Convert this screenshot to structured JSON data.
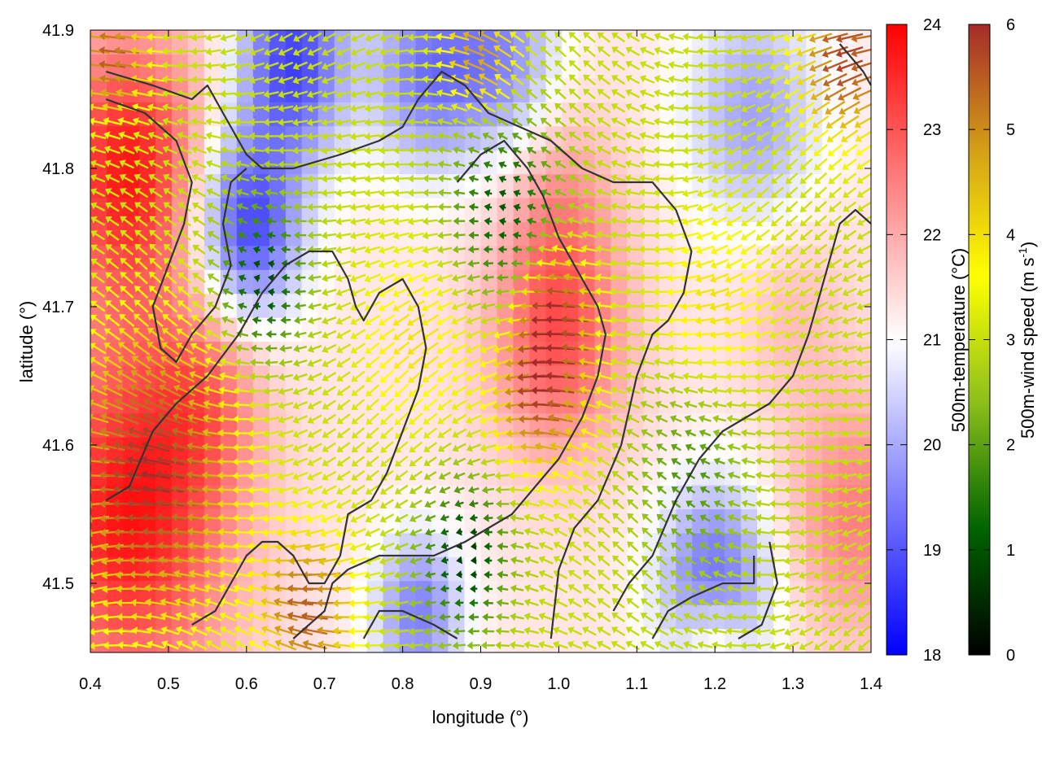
{
  "chart_data": {
    "type": "heatmap",
    "xlabel": "longitude (°)",
    "ylabel": "latitude (°)",
    "xlim": [
      0.4,
      1.4
    ],
    "ylim": [
      41.45,
      41.9
    ],
    "xticks": [
      {
        "value": 0.4,
        "label": "0.4"
      },
      {
        "value": 0.5,
        "label": "0.5"
      },
      {
        "value": 0.6,
        "label": "0.6"
      },
      {
        "value": 0.7,
        "label": "0.7"
      },
      {
        "value": 0.8,
        "label": "0.8"
      },
      {
        "value": 0.9,
        "label": "0.9"
      },
      {
        "value": 1.0,
        "label": "1.0"
      },
      {
        "value": 1.1,
        "label": "1.1"
      },
      {
        "value": 1.2,
        "label": "1.2"
      },
      {
        "value": 1.3,
        "label": "1.3"
      },
      {
        "value": 1.4,
        "label": "1.4"
      }
    ],
    "yticks": [
      {
        "value": 41.5,
        "label": "41.5"
      },
      {
        "value": 41.6,
        "label": "41.6"
      },
      {
        "value": 41.7,
        "label": "41.7"
      },
      {
        "value": 41.8,
        "label": "41.8"
      },
      {
        "value": 41.9,
        "label": "41.9"
      }
    ],
    "colorbars": [
      {
        "name": "temperature",
        "label": "500m-temperature (°C)",
        "range": [
          18,
          24
        ],
        "ticks": [
          {
            "value": 18,
            "label": "18"
          },
          {
            "value": 19,
            "label": "19"
          },
          {
            "value": 20,
            "label": "20"
          },
          {
            "value": 21,
            "label": "21"
          },
          {
            "value": 22,
            "label": "22"
          },
          {
            "value": 23,
            "label": "23"
          },
          {
            "value": 24,
            "label": "24"
          }
        ],
        "colors": [
          "#0000ff",
          "#ffffff",
          "#ff0000"
        ]
      },
      {
        "name": "wind_speed",
        "label_main": "500m-wind speed (m s",
        "label_sup": "-1",
        "label_end": ")",
        "range": [
          0,
          6
        ],
        "ticks": [
          {
            "value": 0,
            "label": "0"
          },
          {
            "value": 1,
            "label": "1"
          },
          {
            "value": 2,
            "label": "2"
          },
          {
            "value": 3,
            "label": "3"
          },
          {
            "value": 4,
            "label": "4"
          },
          {
            "value": 5,
            "label": "5"
          },
          {
            "value": 6,
            "label": "6"
          }
        ],
        "colors": [
          "#000000",
          "#006400",
          "#8cbf1a",
          "#ffff00",
          "#d4a017",
          "#a52a2a"
        ]
      }
    ],
    "temperature_field": {
      "base": 21.3,
      "features": [
        {
          "lon": 0.45,
          "lat": 41.8,
          "amp": 2.4,
          "sigma": 0.07
        },
        {
          "lon": 0.45,
          "lat": 41.55,
          "amp": 2.5,
          "sigma": 0.09
        },
        {
          "lon": 0.6,
          "lat": 41.76,
          "amp": -2.6,
          "sigma": 0.05
        },
        {
          "lon": 0.66,
          "lat": 41.88,
          "amp": -2.5,
          "sigma": 0.05
        },
        {
          "lon": 0.83,
          "lat": 41.87,
          "amp": -1.8,
          "sigma": 0.05
        },
        {
          "lon": 0.93,
          "lat": 41.88,
          "amp": -1.6,
          "sigma": 0.05
        },
        {
          "lon": 1.0,
          "lat": 41.68,
          "amp": 1.7,
          "sigma": 0.06
        },
        {
          "lon": 1.0,
          "lat": 41.78,
          "amp": 0.8,
          "sigma": 0.05
        },
        {
          "lon": 0.82,
          "lat": 41.48,
          "amp": -1.8,
          "sigma": 0.04
        },
        {
          "lon": 0.55,
          "lat": 41.64,
          "amp": 1.0,
          "sigma": 0.05
        },
        {
          "lon": 1.2,
          "lat": 41.5,
          "amp": -2.2,
          "sigma": 0.05
        },
        {
          "lon": 1.25,
          "lat": 41.84,
          "amp": -1.4,
          "sigma": 0.06
        },
        {
          "lon": 1.38,
          "lat": 41.55,
          "amp": 1.2,
          "sigma": 0.06
        },
        {
          "lon": 1.3,
          "lat": 41.7,
          "amp": 0.5,
          "sigma": 0.05
        },
        {
          "lon": 1.2,
          "lat": 41.46,
          "amp": 1.2,
          "sigma": 0.03
        }
      ]
    },
    "wind_field": {
      "base_speed": 3.0,
      "speed_features": [
        {
          "lon": 0.48,
          "lat": 41.58,
          "amp": 3.0,
          "sigma": 0.07
        },
        {
          "lon": 0.98,
          "lat": 41.64,
          "amp": 2.8,
          "sigma": 0.04
        },
        {
          "lon": 1.0,
          "lat": 41.7,
          "amp": 2.6,
          "sigma": 0.03
        },
        {
          "lon": 0.43,
          "lat": 41.88,
          "amp": 2.5,
          "sigma": 0.03
        },
        {
          "lon": 1.37,
          "lat": 41.88,
          "amp": 2.8,
          "sigma": 0.04
        },
        {
          "lon": 0.9,
          "lat": 41.88,
          "amp": 2.0,
          "sigma": 0.03
        },
        {
          "lon": 0.68,
          "lat": 41.48,
          "amp": 2.5,
          "sigma": 0.04
        },
        {
          "lon": 0.62,
          "lat": 41.72,
          "amp": -2.2,
          "sigma": 0.04
        },
        {
          "lon": 0.88,
          "lat": 41.52,
          "amp": -2.3,
          "sigma": 0.04
        },
        {
          "lon": 0.93,
          "lat": 41.77,
          "amp": -2.0,
          "sigma": 0.05
        },
        {
          "lon": 1.17,
          "lat": 41.58,
          "amp": -1.2,
          "sigma": 0.05
        },
        {
          "lon": 0.82,
          "lat": 41.68,
          "amp": 1.0,
          "sigma": 0.05
        },
        {
          "lon": 1.2,
          "lat": 41.7,
          "amp": 1.0,
          "sigma": 0.05
        }
      ],
      "prevailing_direction_deg": 180
    },
    "coastline_paths": [
      [
        [
          0.42,
          41.87
        ],
        [
          0.48,
          41.86
        ],
        [
          0.53,
          41.85
        ],
        [
          0.55,
          41.86
        ],
        [
          0.57,
          41.84
        ],
        [
          0.6,
          41.81
        ],
        [
          0.62,
          41.8
        ],
        [
          0.66,
          41.8
        ],
        [
          0.72,
          41.81
        ],
        [
          0.77,
          41.82
        ],
        [
          0.8,
          41.83
        ],
        [
          0.82,
          41.85
        ],
        [
          0.85,
          41.87
        ],
        [
          0.88,
          41.86
        ],
        [
          0.91,
          41.84
        ],
        [
          0.95,
          41.83
        ],
        [
          0.99,
          41.82
        ],
        [
          1.03,
          41.8
        ],
        [
          1.07,
          41.79
        ],
        [
          1.12,
          41.79
        ],
        [
          1.15,
          41.77
        ],
        [
          1.17,
          41.74
        ],
        [
          1.16,
          41.71
        ],
        [
          1.14,
          41.69
        ],
        [
          1.12,
          41.68
        ],
        [
          1.1,
          41.65
        ],
        [
          1.08,
          41.6
        ],
        [
          1.05,
          41.56
        ],
        [
          1.02,
          41.54
        ],
        [
          1.0,
          41.51
        ],
        [
          0.99,
          41.46
        ]
      ],
      [
        [
          0.42,
          41.85
        ],
        [
          0.47,
          41.84
        ],
        [
          0.51,
          41.82
        ],
        [
          0.53,
          41.79
        ],
        [
          0.52,
          41.76
        ],
        [
          0.5,
          41.73
        ],
        [
          0.48,
          41.7
        ],
        [
          0.49,
          41.67
        ],
        [
          0.51,
          41.66
        ],
        [
          0.53,
          41.68
        ],
        [
          0.56,
          41.7
        ],
        [
          0.58,
          41.73
        ],
        [
          0.57,
          41.76
        ],
        [
          0.58,
          41.79
        ],
        [
          0.6,
          41.8
        ]
      ],
      [
        [
          0.87,
          41.79
        ],
        [
          0.9,
          41.81
        ],
        [
          0.93,
          41.82
        ],
        [
          0.96,
          41.8
        ],
        [
          0.98,
          41.78
        ],
        [
          1.0,
          41.75
        ],
        [
          1.03,
          41.72
        ],
        [
          1.05,
          41.7
        ],
        [
          1.06,
          41.68
        ],
        [
          1.05,
          41.65
        ],
        [
          1.03,
          41.62
        ],
        [
          1.0,
          41.59
        ],
        [
          0.97,
          41.57
        ],
        [
          0.94,
          41.55
        ],
        [
          0.91,
          41.54
        ],
        [
          0.88,
          41.53
        ],
        [
          0.84,
          41.52
        ],
        [
          0.8,
          41.52
        ],
        [
          0.77,
          41.52
        ],
        [
          0.73,
          41.51
        ],
        [
          0.71,
          41.5
        ],
        [
          0.7,
          41.48
        ],
        [
          0.68,
          41.47
        ],
        [
          0.66,
          41.46
        ]
      ],
      [
        [
          0.42,
          41.56
        ],
        [
          0.45,
          41.57
        ],
        [
          0.48,
          41.61
        ],
        [
          0.51,
          41.63
        ],
        [
          0.55,
          41.65
        ],
        [
          0.59,
          41.68
        ],
        [
          0.62,
          41.71
        ],
        [
          0.65,
          41.73
        ],
        [
          0.68,
          41.74
        ],
        [
          0.71,
          41.74
        ],
        [
          0.73,
          41.72
        ],
        [
          0.74,
          41.7
        ],
        [
          0.75,
          41.69
        ],
        [
          0.77,
          41.71
        ],
        [
          0.8,
          41.72
        ],
        [
          0.82,
          41.7
        ],
        [
          0.83,
          41.67
        ],
        [
          0.82,
          41.64
        ],
        [
          0.8,
          41.61
        ],
        [
          0.78,
          41.58
        ],
        [
          0.76,
          41.56
        ],
        [
          0.73,
          41.55
        ],
        [
          0.72,
          41.52
        ],
        [
          0.7,
          41.5
        ],
        [
          0.68,
          41.5
        ],
        [
          0.66,
          41.52
        ],
        [
          0.64,
          41.53
        ],
        [
          0.62,
          41.53
        ],
        [
          0.6,
          41.52
        ],
        [
          0.58,
          41.5
        ],
        [
          0.56,
          41.48
        ],
        [
          0.53,
          41.47
        ]
      ],
      [
        [
          0.75,
          41.46
        ],
        [
          0.77,
          41.48
        ],
        [
          0.8,
          41.48
        ],
        [
          0.84,
          41.47
        ],
        [
          0.87,
          41.46
        ]
      ],
      [
        [
          1.12,
          41.46
        ],
        [
          1.14,
          41.48
        ],
        [
          1.17,
          41.49
        ],
        [
          1.21,
          41.5
        ],
        [
          1.25,
          41.5
        ],
        [
          1.25,
          41.52
        ]
      ],
      [
        [
          1.07,
          41.48
        ],
        [
          1.09,
          41.5
        ],
        [
          1.12,
          41.52
        ],
        [
          1.15,
          41.56
        ],
        [
          1.18,
          41.59
        ],
        [
          1.21,
          41.61
        ],
        [
          1.24,
          41.62
        ],
        [
          1.27,
          41.63
        ],
        [
          1.3,
          41.65
        ],
        [
          1.32,
          41.68
        ],
        [
          1.34,
          41.72
        ],
        [
          1.36,
          41.76
        ],
        [
          1.38,
          41.77
        ],
        [
          1.4,
          41.76
        ]
      ],
      [
        [
          1.36,
          41.89
        ],
        [
          1.39,
          41.87
        ],
        [
          1.4,
          41.86
        ]
      ],
      [
        [
          1.23,
          41.46
        ],
        [
          1.26,
          41.47
        ],
        [
          1.28,
          41.5
        ],
        [
          1.27,
          41.53
        ]
      ]
    ]
  }
}
